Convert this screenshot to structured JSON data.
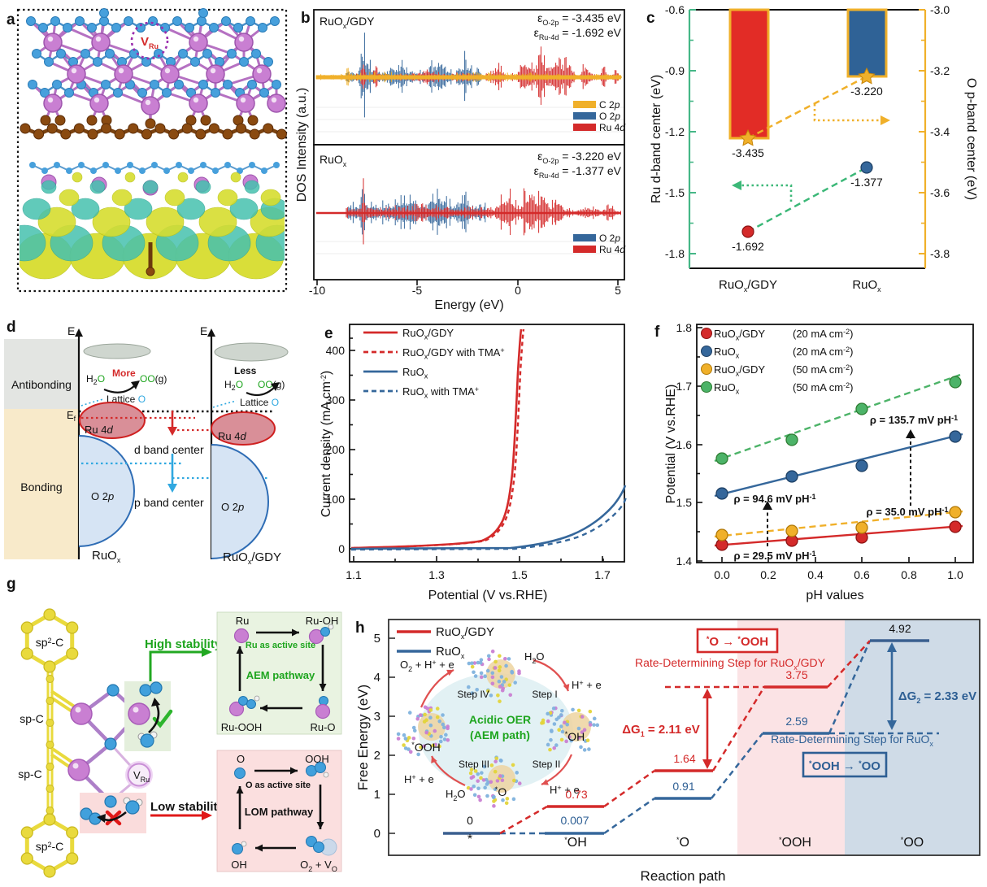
{
  "chart_data": [
    {
      "id": "panel_b",
      "type": "area",
      "title": "Projected density of states",
      "xlabel": "Energy  (eV)",
      "ylabel": "DOS Intensity (a.u.)",
      "xlim": [
        -10,
        5
      ],
      "subpanels": [
        {
          "sample": "RuOx/GDY",
          "series": [
            "C 2p",
            "O 2p",
            "Ru 4d"
          ],
          "annotations": {
            "epsilon_O2p_eV": -3.435,
            "epsilon_Ru4d_eV": -1.692
          }
        },
        {
          "sample": "RuOx",
          "series": [
            "O 2p",
            "Ru 4d"
          ],
          "annotations": {
            "epsilon_O2p_eV": -3.22,
            "epsilon_Ru4d_eV": -1.377
          }
        }
      ]
    },
    {
      "id": "panel_c",
      "type": "bar",
      "categories": [
        "RuOx/GDY",
        "RuOx"
      ],
      "series": [
        {
          "name": "O p-band center (eV)",
          "axis": "right",
          "style": "bar",
          "values": [
            -3.435,
            -3.22
          ],
          "colors": [
            "#e22c26",
            "#2f6296"
          ]
        },
        {
          "name": "Ru d-band center (eV)",
          "axis": "left",
          "style": "scatter",
          "values": [
            -1.692,
            -1.377
          ],
          "colors": [
            "#d42a2a",
            "#35679b"
          ]
        }
      ],
      "left_ylim": [
        -1.8,
        -0.6
      ],
      "right_ylim": [
        -3.8,
        -3.0
      ]
    },
    {
      "id": "panel_e",
      "type": "line",
      "xlabel": "Potential (V vs.RHE)",
      "ylabel": "Current density (mA cm-2)",
      "xlim": [
        1.1,
        1.77
      ],
      "ylim": [
        0,
        440
      ],
      "series": [
        {
          "name": "RuOx/GDY",
          "style": "solid-red",
          "x": [
            1.1,
            1.3,
            1.38,
            1.42,
            1.44,
            1.45,
            1.46,
            1.465,
            1.47
          ],
          "y": [
            0,
            2,
            5,
            12,
            30,
            80,
            200,
            320,
            430
          ]
        },
        {
          "name": "RuOx/GDY with TMA+",
          "style": "dashed-red",
          "x": [
            1.1,
            1.3,
            1.38,
            1.42,
            1.44,
            1.45,
            1.46,
            1.467,
            1.472
          ],
          "y": [
            0,
            2,
            5,
            11,
            28,
            75,
            190,
            315,
            425
          ]
        },
        {
          "name": "RuOx",
          "style": "solid-blue",
          "x": [
            1.1,
            1.5,
            1.55,
            1.6,
            1.65,
            1.7,
            1.75,
            1.77
          ],
          "y": [
            0,
            3,
            12,
            35,
            65,
            95,
            120,
            130
          ]
        },
        {
          "name": "RuOx with TMA+",
          "style": "dashed-blue",
          "x": [
            1.1,
            1.5,
            1.56,
            1.62,
            1.68,
            1.73,
            1.77
          ],
          "y": [
            0,
            2,
            10,
            28,
            55,
            85,
            107
          ]
        }
      ]
    },
    {
      "id": "panel_f",
      "type": "scatter",
      "xlabel": "pH values",
      "ylabel": "Potential (V vs.RHE)",
      "xlim": [
        0,
        1.0
      ],
      "ylim": [
        1.4,
        1.8
      ],
      "x": [
        0,
        0.3,
        0.6,
        1.0
      ],
      "series": [
        {
          "name": "RuOx/GDY",
          "condition": "20 mA cm-2",
          "color": "#d42a2a",
          "slope_mV_per_pH": 29.5,
          "y": [
            1.428,
            1.435,
            1.44,
            1.458
          ]
        },
        {
          "name": "RuOx",
          "condition": "20 mA cm-2",
          "color": "#35679b",
          "slope_mV_per_pH": 94.6,
          "y": [
            1.515,
            1.545,
            1.563,
            1.613
          ]
        },
        {
          "name": "RuOx/GDY",
          "condition": "50 mA cm-2",
          "color": "#f0b02a",
          "slope_mV_per_pH": 35.0,
          "y": [
            1.445,
            1.452,
            1.457,
            1.483
          ]
        },
        {
          "name": "RuOx",
          "condition": "50 mA cm-2",
          "color": "#4cb368",
          "slope_mV_per_pH": 135.7,
          "y": [
            1.575,
            1.608,
            1.66,
            1.707
          ]
        }
      ]
    },
    {
      "id": "panel_h",
      "type": "line",
      "xlabel": "Reaction path",
      "ylabel": "Free Energy (eV)",
      "ylim": [
        0,
        5
      ],
      "categories": [
        "*",
        "*OH",
        "*O",
        "*OOH",
        "*OO"
      ],
      "series": [
        {
          "name": "RuOx/GDY",
          "color": "#d42a2a",
          "values": [
            0,
            0.73,
            1.64,
            3.75,
            4.92
          ]
        },
        {
          "name": "RuOx",
          "color": "#35679b",
          "values": [
            0,
            0.007,
            0.91,
            2.59,
            4.92
          ]
        }
      ],
      "annotations": {
        "dG1_eV": 2.11,
        "dG2_eV": 2.33,
        "rds_ruox_gdy": "*O → *OOH  Rate-Determining Step for RuOx/GDY",
        "rds_ruox": "*OOH → *OO  Rate-Determining Step for RuOx",
        "cycle": "Acidic OER (AEM path): Step I-IV"
      }
    }
  ],
  "common": {
    "ruo": "RuO",
    "x": "x",
    "gdy": "/GDY",
    "with_tma": " with TMA",
    "plus": "+",
    "o2": "O 2",
    "p": "p",
    "ru4": "Ru 4",
    "d": "d",
    "c2": "C 2"
  },
  "a": {
    "letter": "a",
    "v": "V",
    "v_sub": "Ru"
  },
  "b": {
    "letter": "b",
    "ylabel": "DOS Intensity (a.u.)",
    "xlabel": "Energy  (eV)",
    "xticks": [
      "-10",
      "-5",
      "0",
      "5"
    ],
    "eps": "ε",
    "eps_o_sub": "O-2p",
    "eps_ru_sub": "Ru-4d",
    "top_eps_o": " = -3.435 eV",
    "top_eps_ru": " = -1.692 eV",
    "bot_eps_o": " = -3.220 eV",
    "bot_eps_ru": " = -1.377 eV"
  },
  "c": {
    "letter": "c",
    "yl_label": "Ru d-band center (eV)",
    "yr_label": "O p-band center (eV)",
    "yl_ticks": [
      "-0.6",
      "-0.9",
      "-1.2",
      "-1.5",
      "-1.8"
    ],
    "yr_ticks": [
      "-3.0",
      "-3.2",
      "-3.4",
      "-3.6",
      "-3.8"
    ],
    "bar1_val": "-3.435",
    "bar2_val": "-3.220",
    "dot1_val": "-1.692",
    "dot2_val": "-1.377"
  },
  "d": {
    "letter": "d",
    "e": "E",
    "antibonding": "Antibonding",
    "bonding": "Bonding",
    "h": "H",
    "two": "2",
    "o_green": "O",
    "more": "More",
    "less": "Less",
    "oo": "OO",
    "g_par": "(g)",
    "lattice": "Lattice ",
    "o_blue": "O",
    "ef_e": "E",
    "ef_f": "f",
    "dband": "d band center",
    "pband": "p band center"
  },
  "e": {
    "letter": "e",
    "ylabel_a": "Current density (mA cm",
    "sup": "-2",
    "ylabel_b": ")",
    "xlabel": "Potential (V vs.RHE)",
    "xticks": [
      "1.1",
      "1.3",
      "1.5",
      "1.7"
    ],
    "yticks": [
      "0",
      "100",
      "200",
      "300",
      "400"
    ]
  },
  "f": {
    "letter": "f",
    "ylabel": "Potential (V vs.RHE)",
    "xlabel": "pH values",
    "xticks": [
      "0.0",
      "0.2",
      "0.4",
      "0.6",
      "0.8",
      "1.0"
    ],
    "yticks": [
      "1.8",
      "1.7",
      "1.6",
      "1.5",
      "1.4"
    ],
    "cond20": "(20 mA cm",
    "cond50": "(50 mA cm",
    "sup2": "-2",
    "close": ")",
    "rho_red": "ρ = 29.5 mV pH",
    "rho_blue": "ρ = 94.6 mV pH",
    "rho_yellow": "ρ = 35.0 mV pH",
    "rho_green": "ρ = 135.7 mV pH",
    "sup1": "-1"
  },
  "g": {
    "letter": "g",
    "sp": "sp",
    "two": "2",
    "dashc": "-C",
    "spc": "sp-C",
    "high": "High stability",
    "low": "Low stability",
    "v": "V",
    "v_sub": "Ru",
    "aem_n1": "Ru",
    "aem_n2": "Ru-OH",
    "aem_n3": "Ru-O",
    "aem_n4": "Ru-OOH",
    "aem_active": "Ru as active site",
    "aem_path": "AEM pathway",
    "lom_n1": "O",
    "lom_n2": "OOH",
    "lom_n4": "OH",
    "lom_o": "O",
    "lom_plus": " + V",
    "lom_vsub": "O",
    "lom_active": "O as active site",
    "lom_path": "LOM pathway"
  },
  "h": {
    "letter": "h",
    "ylabel": "Free Energy (eV)",
    "xlabel": "Reaction path",
    "yticks": [
      "0",
      "1",
      "2",
      "3",
      "4",
      "5"
    ],
    "star": "*",
    "cat1": "*",
    "cat2": "OH",
    "cat3": "O",
    "cat4": "OOH",
    "cat5": "OO",
    "v0": "0",
    "v0007": "0.007",
    "v073": "0.73",
    "v091": "0.91",
    "v164": "1.64",
    "v259": "2.59",
    "v375": "3.75",
    "v492": "4.92",
    "dg": "ΔG",
    "dg1_sub": "1",
    "dg1": " = 2.11 eV",
    "dg2_sub": "2",
    "dg2": " = 2.33 eV",
    "rds_red": "Rate-Determining Step for RuO",
    "rds_blue": "Rate-Determining Step for RuO",
    "box_red_a": "O",
    "arrow": " → ",
    "box_red_b": "OOH",
    "box_blue_a": "OOH",
    "box_blue_b": "OO",
    "acidic1": "Acidic OER",
    "acidic2": "(AEM path)",
    "step1": "Step I",
    "step2": "Step II",
    "step3": "Step III",
    "step4": "Step IV",
    "o2a": "O",
    "o2sub": "2",
    "o2b": " + H",
    "sup_plus": "+",
    "o2c": " + e",
    "h2o_h": "H",
    "h2o_2": "2",
    "h2o_o": "O",
    "hpe_a": "H",
    "hpe_b": " + e",
    "i_oh": "OH",
    "i_o": "O",
    "i_ooh": "OOH"
  }
}
